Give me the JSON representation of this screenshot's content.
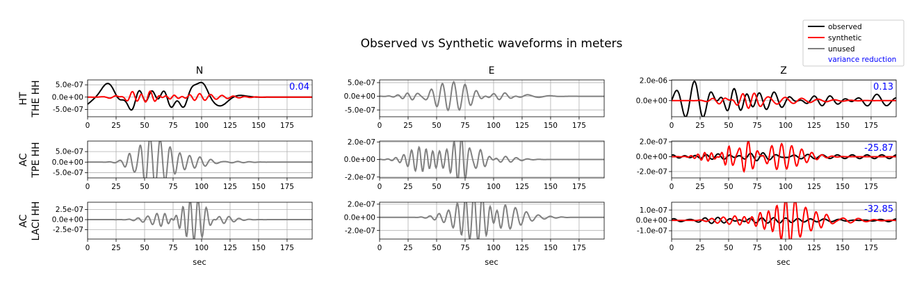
{
  "chart_data": {
    "type": "line",
    "title": "Observed vs Synthetic waveforms in meters",
    "columns": [
      "N",
      "E",
      "Z"
    ],
    "rows": [
      {
        "line1": "HT",
        "line2": "THE HH"
      },
      {
        "line1": "AC",
        "line2": "TPE HH"
      },
      {
        "line1": "AC",
        "line2": "LACI HH"
      }
    ],
    "xlabel": "sec",
    "xlim": [
      0,
      197
    ],
    "xticks": [
      0,
      25,
      50,
      75,
      100,
      125,
      150,
      175
    ],
    "legend": {
      "placement": "top-right",
      "entries": [
        "observed",
        "synthetic",
        "unused"
      ],
      "vr_label": "variance reduction"
    },
    "colors": {
      "observed": "#000000",
      "synthetic": "#ff0000",
      "unused": "#808080",
      "vr": "#0000ff"
    },
    "panels": [
      {
        "row": 0,
        "col": 0,
        "used": true,
        "ylim": [
          -8e-07,
          7e-07
        ],
        "yticks": [
          -5e-07,
          0,
          5e-07
        ],
        "ytick_labels": [
          "-5.0e-07",
          "0.0e+00",
          "5.0e-07"
        ],
        "vr": "0.04",
        "observed": {
          "bg": 0,
          "bursts": [
            [
              3,
              6e-08,
              14,
              16
            ],
            [
              17,
              5.2e-07,
              19,
              40
            ],
            [
              46,
              2.8e-07,
              10,
              14
            ],
            [
              67,
              2.5e-07,
              18,
              12
            ],
            [
              98,
              6.3e-07,
              18,
              40
            ]
          ]
        },
        "synthetic": {
          "bg": 0,
          "bursts": [
            [
              40,
              1e-07,
              14,
              14
            ],
            [
              55,
              2.6e-07,
              14,
              8
            ],
            [
              75,
              1.7e-07,
              14,
              8
            ],
            [
              98,
              1.1e-07,
              22,
              10
            ]
          ]
        }
      },
      {
        "row": 0,
        "col": 1,
        "used": false,
        "ylim": [
          -7.5e-07,
          6e-07
        ],
        "yticks": [
          -5e-07,
          0,
          5e-07
        ],
        "ytick_labels": [
          "-5.0e-07",
          "0.0e+00",
          "5.0e-07"
        ],
        "vr": "",
        "unused": {
          "bg": 0,
          "bursts": [
            [
              32,
              1e-07,
              12,
              8
            ],
            [
              65,
              5.3e-07,
              18,
              10
            ],
            [
              100,
              1.8e-07,
              12,
              10
            ],
            [
              130,
              5e-08,
              14,
              20
            ]
          ]
        }
      },
      {
        "row": 0,
        "col": 2,
        "used": true,
        "ylim": [
          -1.6e-06,
          2.05e-06
        ],
        "yticks": [
          0,
          2e-06
        ],
        "ytick_labels": [
          "0.0e+00",
          "2.0e-06"
        ],
        "vr": "0.13",
        "observed": {
          "bg": 0,
          "bursts": [
            [
              20,
              1.9e-06,
              14,
              16
            ],
            [
              55,
              1.3e-06,
              12,
              12
            ],
            [
              90,
              1e-06,
              18,
              14
            ],
            [
              125,
              6e-07,
              22,
              14
            ],
            [
              180,
              6e-07,
              14,
              18
            ]
          ]
        },
        "synthetic": {
          "bg": 0,
          "bursts": [
            [
              48,
              5e-07,
              10,
              12
            ],
            [
              63,
              8e-07,
              10,
              10
            ],
            [
              85,
              3e-07,
              20,
              14
            ],
            [
              115,
              1.5e-07,
              25,
              14
            ]
          ]
        }
      },
      {
        "row": 1,
        "col": 0,
        "used": false,
        "ylim": [
          -7.5e-07,
          1e-06
        ],
        "yticks": [
          -5e-07,
          0,
          5e-07
        ],
        "ytick_labels": [
          "-5.0e-07",
          "0.0e+00",
          "5.0e-07"
        ],
        "vr": "",
        "unused": {
          "bg": 0,
          "bursts": [
            [
              42,
              1.4e-07,
              6,
              6
            ],
            [
              55,
              1e-06,
              12,
              9
            ],
            [
              72,
              4.5e-07,
              16,
              9
            ],
            [
              98,
              1.5e-07,
              14,
              10
            ],
            [
              122,
              5e-08,
              14,
              10
            ]
          ]
        }
      },
      {
        "row": 1,
        "col": 1,
        "used": false,
        "ylim": [
          -2.1e-07,
          2.1e-07
        ],
        "yticks": [
          -2e-07,
          0,
          2e-07
        ],
        "ytick_labels": [
          "-2.0e-07",
          "0.0e+00",
          "2.0e-07"
        ],
        "vr": "",
        "unused": {
          "bg": 0,
          "bursts": [
            [
              35,
              1e-07,
              12,
              7
            ],
            [
              52,
              1.7e-07,
              12,
              6
            ],
            [
              66,
              2.1e-07,
              10,
              6
            ],
            [
              80,
              1.2e-07,
              14,
              8
            ],
            [
              100,
              4e-08,
              16,
              10
            ]
          ]
        }
      },
      {
        "row": 1,
        "col": 2,
        "used": true,
        "ylim": [
          -2.85e-07,
          2.1e-07
        ],
        "yticks": [
          -2e-07,
          0,
          2e-07
        ],
        "ytick_labels": [
          "-2.0e-07",
          "0.0e+00",
          "2.0e-07"
        ],
        "vr": "-25.87",
        "observed": {
          "bg": 2.5e-08,
          "bursts": [
            [
              22,
              3e-08,
              14,
              12
            ],
            [
              60,
              3.5e-08,
              30,
              10
            ]
          ]
        },
        "synthetic": {
          "bg": 0,
          "bursts": [
            [
              35,
              7e-08,
              10,
              6
            ],
            [
              50,
              1.2e-07,
              8,
              6
            ],
            [
              67,
              2.2e-07,
              10,
              8
            ],
            [
              88,
              1.2e-07,
              14,
              9
            ],
            [
              105,
              1e-07,
              16,
              9
            ]
          ]
        }
      },
      {
        "row": 2,
        "col": 0,
        "used": false,
        "ylim": [
          -4.8e-07,
          4.3e-07
        ],
        "yticks": [
          -2.5e-07,
          0,
          2.5e-07
        ],
        "ytick_labels": [
          "-2.5e-07",
          "0.0e+00",
          "2.5e-07"
        ],
        "vr": "",
        "unused": {
          "bg": 0,
          "bursts": [
            [
              52,
              8e-08,
              8,
              8
            ],
            [
              68,
              1.5e-07,
              10,
              7
            ],
            [
              84,
              2.5e-07,
              8,
              6
            ],
            [
              97,
              4.3e-07,
              8,
              7
            ],
            [
              115,
              1e-07,
              12,
              9
            ]
          ]
        }
      },
      {
        "row": 2,
        "col": 1,
        "used": false,
        "ylim": [
          -3.3e-07,
          2.3e-07
        ],
        "yticks": [
          -2e-07,
          0,
          2e-07
        ],
        "ytick_labels": [
          "-2.0e-07",
          "0.0e+00",
          "2.0e-07"
        ],
        "vr": "",
        "unused": {
          "bg": 0,
          "bursts": [
            [
              60,
              8e-08,
              10,
              8
            ],
            [
              75,
              2e-07,
              8,
              7
            ],
            [
              90,
              3.2e-07,
              10,
              7
            ],
            [
              110,
              1.4e-07,
              14,
              9
            ],
            [
              130,
              5e-08,
              14,
              10
            ]
          ]
        }
      },
      {
        "row": 2,
        "col": 2,
        "used": true,
        "ylim": [
          -1.8e-07,
          1.75e-07
        ],
        "yticks": [
          -1e-07,
          0,
          1e-07
        ],
        "ytick_labels": [
          "-1.0e-07",
          "0.0e+00",
          "1.0e-07"
        ],
        "vr": "-32.85",
        "observed": {
          "bg": 1.5e-08,
          "bursts": [
            [
              60,
              2e-08,
              30,
              10
            ],
            [
              100,
              3e-08,
              20,
              12
            ],
            [
              165,
              1.5e-08,
              18,
              14
            ]
          ]
        },
        "synthetic": {
          "bg": 0,
          "bursts": [
            [
              45,
              3e-08,
              10,
              10
            ],
            [
              65,
              4e-08,
              10,
              9
            ],
            [
              78,
              9e-08,
              10,
              8
            ],
            [
              100,
              1.75e-07,
              10,
              8
            ],
            [
              118,
              1.2e-07,
              12,
              9
            ],
            [
              150,
              2.5e-08,
              18,
              14
            ]
          ]
        }
      }
    ]
  }
}
